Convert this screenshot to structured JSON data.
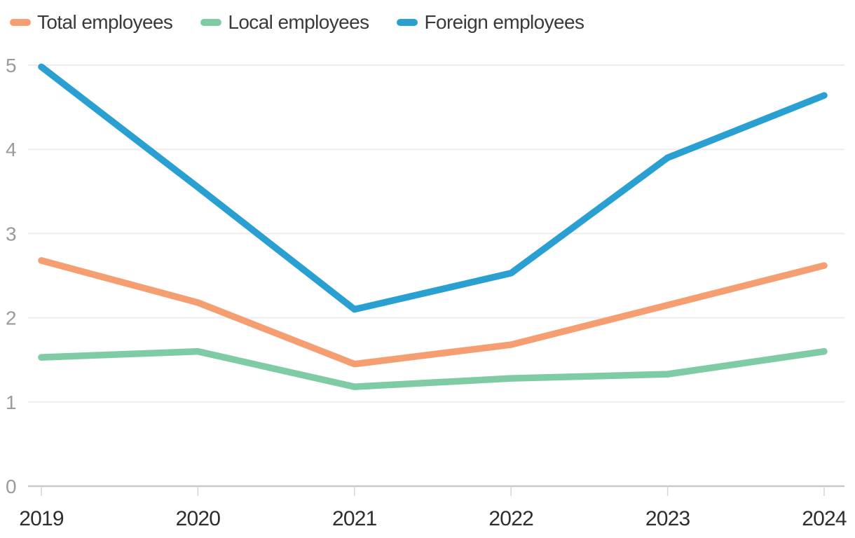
{
  "chart_data": {
    "type": "line",
    "title": "",
    "xlabel": "",
    "ylabel": "",
    "categories": [
      "2019",
      "2020",
      "2021",
      "2022",
      "2023",
      "2024"
    ],
    "series": [
      {
        "name": "Total employees",
        "color": "#F59E72",
        "values": [
          2.68,
          2.18,
          1.45,
          1.68,
          2.15,
          2.62
        ]
      },
      {
        "name": "Local employees",
        "color": "#7FCBA4",
        "values": [
          1.53,
          1.6,
          1.18,
          1.28,
          1.33,
          1.6
        ]
      },
      {
        "name": "Foreign employees",
        "color": "#2AA0D2",
        "values": [
          4.98,
          3.55,
          2.1,
          2.53,
          3.9,
          4.64
        ]
      }
    ],
    "ylim": [
      0,
      5
    ],
    "yticks": [
      "0",
      "1",
      "2",
      "3",
      "4",
      "5"
    ],
    "grid": true,
    "legend_position": "top-left"
  },
  "colors": {
    "background": "#ffffff",
    "gridline": "#ededed",
    "axis_line": "#c9c9c9",
    "tick_mark": "#d6d6d6",
    "y_label": "#9b9b9b",
    "x_label": "#2e2e2e",
    "legend_text": "#3a3a3a"
  }
}
